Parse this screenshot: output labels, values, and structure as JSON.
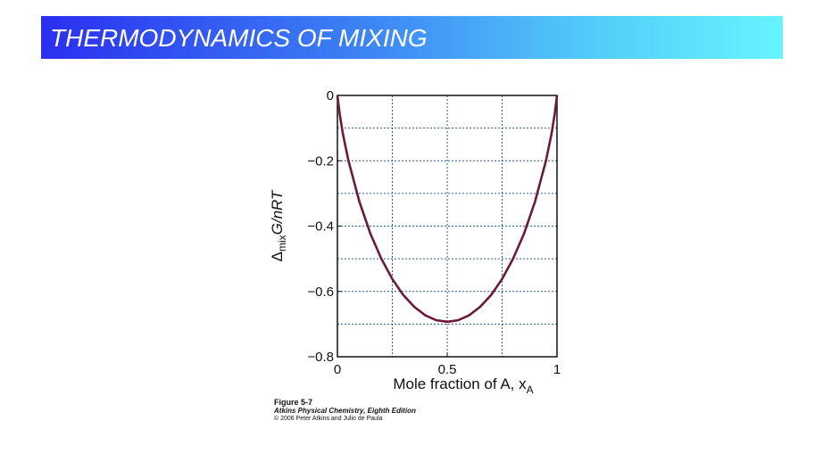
{
  "slide": {
    "title": "THERMODYNAMICS OF MIXING",
    "colors": {
      "title_bar_start": "#2b2ff0",
      "title_bar_end": "#66f4ff",
      "title_text": "#ffffff"
    }
  },
  "chart_data": {
    "type": "line",
    "xlabel": "Mole fraction of A, x",
    "xlabel_subscript": "A",
    "ylabel_prefix": "Δ",
    "ylabel_subscript": "mix",
    "ylabel_suffix": "G/nRT",
    "xlim": [
      0,
      1
    ],
    "ylim": [
      -0.8,
      0
    ],
    "x_ticks": [
      0,
      0.5,
      1
    ],
    "x_tick_labels": [
      "0",
      "0.5",
      "1"
    ],
    "y_ticks": [
      0,
      -0.2,
      -0.4,
      -0.6,
      -0.8
    ],
    "y_tick_labels": [
      "0",
      "−0.2",
      "−0.4",
      "−0.6",
      "−0.8"
    ],
    "grid": true,
    "grid_style": "dashed",
    "series_color": "#6b1a3c",
    "series": [
      {
        "x": [
          0,
          0.01,
          0.025,
          0.05,
          0.1,
          0.15,
          0.2,
          0.25,
          0.3,
          0.35,
          0.4,
          0.45,
          0.5,
          0.55,
          0.6,
          0.65,
          0.7,
          0.75,
          0.8,
          0.85,
          0.9,
          0.95,
          0.975,
          0.99,
          1
        ],
        "y": [
          0,
          -0.056,
          -0.117,
          -0.199,
          -0.325,
          -0.423,
          -0.5,
          -0.562,
          -0.611,
          -0.647,
          -0.673,
          -0.688,
          -0.693,
          -0.688,
          -0.673,
          -0.647,
          -0.611,
          -0.562,
          -0.5,
          -0.423,
          -0.325,
          -0.199,
          -0.117,
          -0.056,
          0
        ]
      }
    ]
  },
  "caption": {
    "line1": "Figure 5-7",
    "line2": "Atkins Physical Chemistry, Eighth Edition",
    "line3": "© 2006 Peter Atkins and Julio de Paula"
  }
}
